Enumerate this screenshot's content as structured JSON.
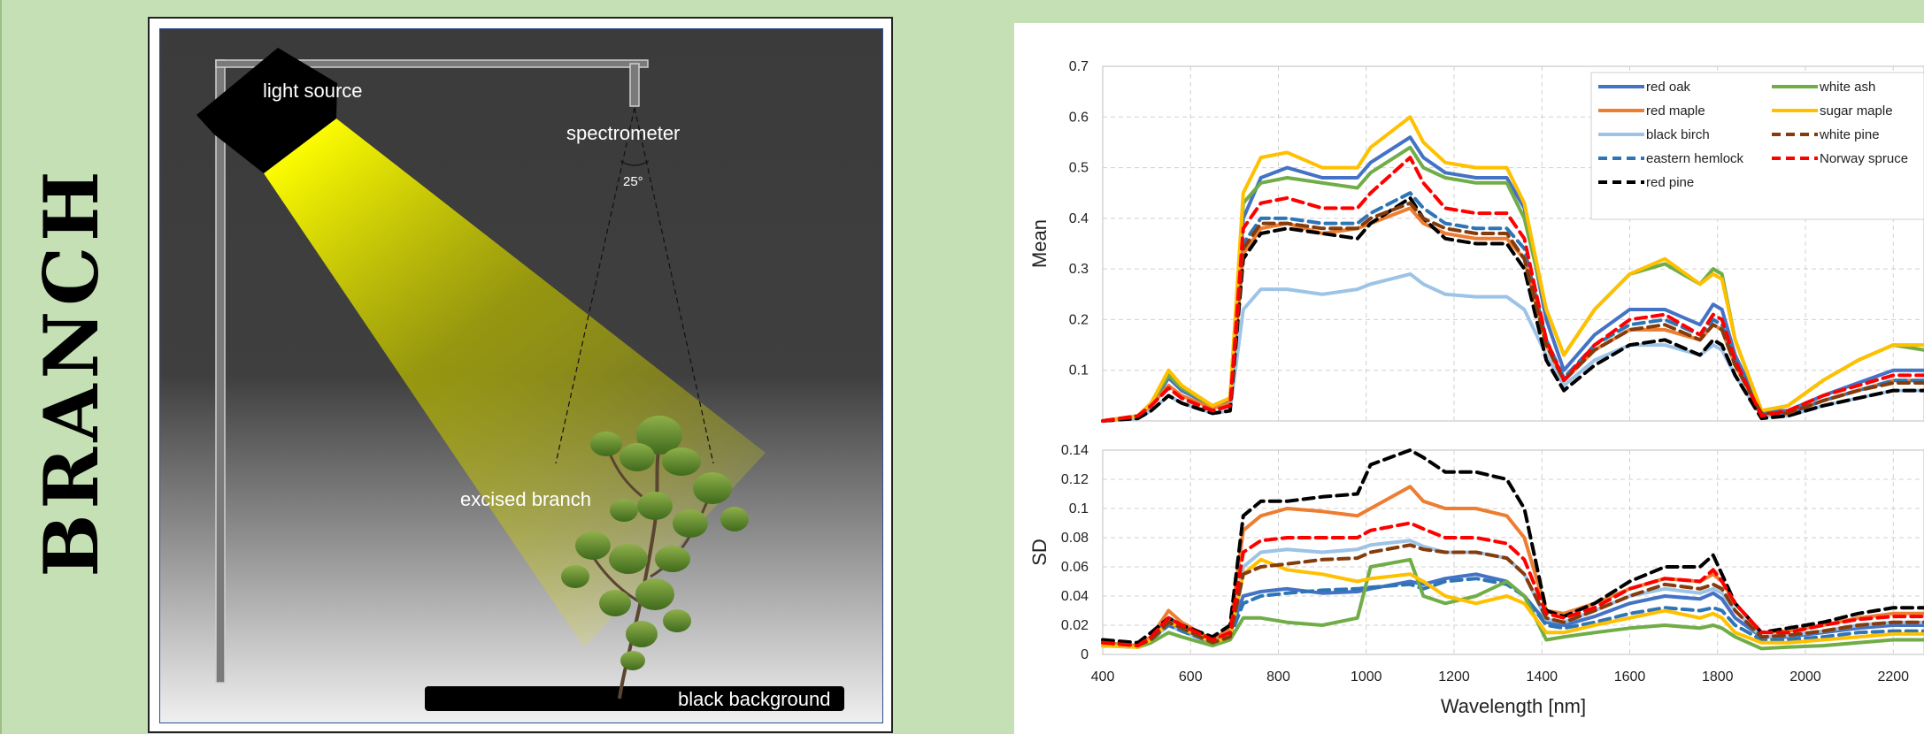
{
  "title": "BRANCH",
  "setup": {
    "light_label": "light source",
    "spectrometer_label": "spectrometer",
    "angle_label": "25°",
    "branch_label": "excised branch",
    "background_label": "black background"
  },
  "chart_data": [
    {
      "type": "line",
      "ylabel": "Mean",
      "xlim": [
        400,
        2270
      ],
      "ylim": [
        0,
        0.7
      ],
      "yticks": [
        "0.1",
        "0.2",
        "0.3",
        "0.4",
        "0.5",
        "0.6",
        "0.7"
      ],
      "grid": true,
      "legend": "top-right",
      "x": [
        400,
        480,
        510,
        550,
        580,
        650,
        690,
        720,
        760,
        820,
        900,
        980,
        1010,
        1100,
        1130,
        1180,
        1250,
        1320,
        1360,
        1410,
        1450,
        1520,
        1600,
        1680,
        1760,
        1790,
        1810,
        1840,
        1900,
        1960,
        2040,
        2120,
        2200,
        2270
      ],
      "series": [
        {
          "name": "red oak",
          "color": "#4472c4",
          "dash": false,
          "values": [
            0.0,
            0.01,
            0.03,
            0.085,
            0.06,
            0.03,
            0.04,
            0.4,
            0.48,
            0.5,
            0.48,
            0.48,
            0.51,
            0.56,
            0.52,
            0.49,
            0.48,
            0.48,
            0.42,
            0.2,
            0.1,
            0.17,
            0.22,
            0.22,
            0.19,
            0.23,
            0.22,
            0.13,
            0.02,
            0.02,
            0.05,
            0.075,
            0.1,
            0.1
          ]
        },
        {
          "name": "red maple",
          "color": "#ed7d31",
          "dash": false,
          "values": [
            0.0,
            0.01,
            0.03,
            0.07,
            0.05,
            0.025,
            0.035,
            0.33,
            0.38,
            0.39,
            0.37,
            0.38,
            0.39,
            0.42,
            0.39,
            0.37,
            0.36,
            0.36,
            0.32,
            0.15,
            0.08,
            0.14,
            0.18,
            0.18,
            0.16,
            0.19,
            0.18,
            0.11,
            0.015,
            0.015,
            0.04,
            0.06,
            0.08,
            0.08
          ]
        },
        {
          "name": "black birch",
          "color": "#9dc3e6",
          "dash": false,
          "values": [
            0.0,
            0.005,
            0.02,
            0.05,
            0.035,
            0.015,
            0.02,
            0.22,
            0.26,
            0.26,
            0.25,
            0.26,
            0.27,
            0.29,
            0.27,
            0.25,
            0.245,
            0.245,
            0.22,
            0.13,
            0.07,
            0.12,
            0.15,
            0.15,
            0.13,
            0.15,
            0.14,
            0.09,
            0.01,
            0.01,
            0.03,
            0.045,
            0.06,
            0.06
          ]
        },
        {
          "name": "eastern hemlock",
          "color": "#2e75b6",
          "dash": true,
          "values": [
            0.0,
            0.01,
            0.03,
            0.065,
            0.045,
            0.02,
            0.03,
            0.35,
            0.4,
            0.4,
            0.39,
            0.39,
            0.41,
            0.45,
            0.42,
            0.39,
            0.38,
            0.38,
            0.34,
            0.16,
            0.085,
            0.15,
            0.19,
            0.2,
            0.17,
            0.2,
            0.19,
            0.12,
            0.015,
            0.015,
            0.04,
            0.06,
            0.08,
            0.08
          ]
        },
        {
          "name": "red pine",
          "color": "#000000",
          "dash": true,
          "values": [
            0.0,
            0.005,
            0.02,
            0.05,
            0.035,
            0.015,
            0.02,
            0.32,
            0.37,
            0.38,
            0.37,
            0.36,
            0.39,
            0.44,
            0.4,
            0.36,
            0.35,
            0.35,
            0.3,
            0.12,
            0.06,
            0.11,
            0.15,
            0.16,
            0.13,
            0.16,
            0.15,
            0.09,
            0.005,
            0.01,
            0.03,
            0.045,
            0.06,
            0.06
          ]
        },
        {
          "name": "white ash",
          "color": "#70ad47",
          "dash": false,
          "values": [
            0.0,
            0.01,
            0.035,
            0.09,
            0.065,
            0.03,
            0.045,
            0.43,
            0.47,
            0.48,
            0.47,
            0.46,
            0.49,
            0.54,
            0.5,
            0.48,
            0.47,
            0.47,
            0.4,
            0.22,
            0.13,
            0.22,
            0.29,
            0.31,
            0.27,
            0.3,
            0.29,
            0.16,
            0.02,
            0.03,
            0.08,
            0.12,
            0.15,
            0.14
          ]
        },
        {
          "name": "sugar maple",
          "color": "#ffc000",
          "dash": false,
          "values": [
            0.0,
            0.01,
            0.035,
            0.1,
            0.07,
            0.03,
            0.045,
            0.45,
            0.52,
            0.53,
            0.5,
            0.5,
            0.54,
            0.6,
            0.55,
            0.51,
            0.5,
            0.5,
            0.43,
            0.22,
            0.13,
            0.22,
            0.29,
            0.32,
            0.27,
            0.29,
            0.28,
            0.16,
            0.02,
            0.03,
            0.08,
            0.12,
            0.15,
            0.15
          ]
        },
        {
          "name": "white pine",
          "color": "#843c0c",
          "dash": true,
          "values": [
            0.0,
            0.01,
            0.03,
            0.065,
            0.045,
            0.02,
            0.03,
            0.34,
            0.39,
            0.39,
            0.38,
            0.38,
            0.4,
            0.43,
            0.4,
            0.38,
            0.37,
            0.37,
            0.32,
            0.15,
            0.08,
            0.14,
            0.18,
            0.19,
            0.16,
            0.19,
            0.18,
            0.11,
            0.015,
            0.015,
            0.04,
            0.06,
            0.075,
            0.075
          ]
        },
        {
          "name": "Norway spruce",
          "color": "#ff0000",
          "dash": true,
          "values": [
            0.0,
            0.01,
            0.03,
            0.065,
            0.045,
            0.02,
            0.03,
            0.38,
            0.43,
            0.44,
            0.42,
            0.42,
            0.45,
            0.52,
            0.47,
            0.42,
            0.41,
            0.41,
            0.36,
            0.16,
            0.08,
            0.15,
            0.2,
            0.21,
            0.17,
            0.21,
            0.2,
            0.12,
            0.01,
            0.02,
            0.05,
            0.07,
            0.09,
            0.09
          ]
        }
      ]
    },
    {
      "type": "line",
      "ylabel": "SD",
      "xlabel": "Wavelength [nm]",
      "xlim": [
        400,
        2270
      ],
      "ylim": [
        0,
        0.14
      ],
      "yticks": [
        "0",
        "0.02",
        "0.04",
        "0.06",
        "0.08",
        "0.1",
        "0.12",
        "0.14"
      ],
      "xticks": [
        "400",
        "600",
        "800",
        "1000",
        "1200",
        "1400",
        "1600",
        "1800",
        "2000",
        "2200"
      ],
      "grid": true,
      "x": [
        400,
        480,
        510,
        550,
        580,
        650,
        690,
        720,
        760,
        820,
        900,
        980,
        1010,
        1100,
        1130,
        1180,
        1250,
        1320,
        1360,
        1410,
        1450,
        1520,
        1600,
        1680,
        1760,
        1790,
        1810,
        1840,
        1900,
        1960,
        2040,
        2120,
        2200,
        2270
      ],
      "series": [
        {
          "name": "red oak",
          "color": "#4472c4",
          "dash": false,
          "values": [
            0.008,
            0.006,
            0.01,
            0.025,
            0.02,
            0.01,
            0.015,
            0.04,
            0.043,
            0.045,
            0.042,
            0.043,
            0.045,
            0.05,
            0.048,
            0.052,
            0.055,
            0.05,
            0.04,
            0.022,
            0.02,
            0.026,
            0.035,
            0.04,
            0.038,
            0.042,
            0.038,
            0.025,
            0.012,
            0.012,
            0.015,
            0.018,
            0.02,
            0.02
          ]
        },
        {
          "name": "red maple",
          "color": "#ed7d31",
          "dash": false,
          "values": [
            0.008,
            0.006,
            0.012,
            0.03,
            0.022,
            0.01,
            0.018,
            0.085,
            0.095,
            0.1,
            0.098,
            0.095,
            0.1,
            0.115,
            0.105,
            0.1,
            0.1,
            0.095,
            0.08,
            0.03,
            0.028,
            0.035,
            0.045,
            0.052,
            0.05,
            0.055,
            0.05,
            0.035,
            0.015,
            0.016,
            0.02,
            0.025,
            0.028,
            0.028
          ]
        },
        {
          "name": "black birch",
          "color": "#9dc3e6",
          "dash": false,
          "values": [
            0.006,
            0.005,
            0.01,
            0.02,
            0.016,
            0.008,
            0.012,
            0.06,
            0.07,
            0.072,
            0.07,
            0.072,
            0.075,
            0.078,
            0.074,
            0.07,
            0.07,
            0.066,
            0.055,
            0.024,
            0.022,
            0.03,
            0.04,
            0.045,
            0.042,
            0.045,
            0.042,
            0.03,
            0.012,
            0.013,
            0.016,
            0.02,
            0.022,
            0.022
          ]
        },
        {
          "name": "eastern hemlock",
          "color": "#2e75b6",
          "dash": true,
          "values": [
            0.006,
            0.005,
            0.01,
            0.02,
            0.016,
            0.008,
            0.012,
            0.035,
            0.04,
            0.042,
            0.044,
            0.045,
            0.046,
            0.048,
            0.045,
            0.05,
            0.052,
            0.048,
            0.04,
            0.02,
            0.018,
            0.022,
            0.028,
            0.032,
            0.03,
            0.032,
            0.03,
            0.02,
            0.01,
            0.01,
            0.012,
            0.015,
            0.016,
            0.016
          ]
        },
        {
          "name": "red pine",
          "color": "#000000",
          "dash": true,
          "values": [
            0.01,
            0.008,
            0.015,
            0.025,
            0.02,
            0.012,
            0.02,
            0.095,
            0.105,
            0.105,
            0.108,
            0.11,
            0.13,
            0.14,
            0.135,
            0.125,
            0.125,
            0.12,
            0.1,
            0.03,
            0.026,
            0.035,
            0.05,
            0.06,
            0.06,
            0.068,
            0.055,
            0.035,
            0.015,
            0.018,
            0.022,
            0.028,
            0.032,
            0.032
          ]
        },
        {
          "name": "white ash",
          "color": "#70ad47",
          "dash": false,
          "values": [
            0.008,
            0.005,
            0.008,
            0.015,
            0.012,
            0.006,
            0.01,
            0.025,
            0.025,
            0.022,
            0.02,
            0.025,
            0.06,
            0.065,
            0.04,
            0.035,
            0.04,
            0.05,
            0.04,
            0.01,
            0.012,
            0.015,
            0.018,
            0.02,
            0.018,
            0.02,
            0.018,
            0.012,
            0.004,
            0.005,
            0.006,
            0.008,
            0.01,
            0.01
          ]
        },
        {
          "name": "sugar maple",
          "color": "#ffc000",
          "dash": false,
          "values": [
            0.006,
            0.005,
            0.01,
            0.022,
            0.018,
            0.008,
            0.012,
            0.055,
            0.065,
            0.058,
            0.055,
            0.05,
            0.052,
            0.055,
            0.05,
            0.04,
            0.035,
            0.04,
            0.035,
            0.015,
            0.015,
            0.02,
            0.025,
            0.03,
            0.025,
            0.028,
            0.025,
            0.015,
            0.008,
            0.008,
            0.01,
            0.012,
            0.014,
            0.014
          ]
        },
        {
          "name": "white pine",
          "color": "#843c0c",
          "dash": true,
          "values": [
            0.008,
            0.006,
            0.01,
            0.022,
            0.018,
            0.008,
            0.012,
            0.055,
            0.06,
            0.062,
            0.065,
            0.066,
            0.07,
            0.075,
            0.072,
            0.07,
            0.07,
            0.066,
            0.055,
            0.025,
            0.022,
            0.03,
            0.04,
            0.048,
            0.045,
            0.048,
            0.045,
            0.03,
            0.012,
            0.013,
            0.016,
            0.02,
            0.022,
            0.022
          ]
        },
        {
          "name": "Norway spruce",
          "color": "#ff0000",
          "dash": true,
          "values": [
            0.008,
            0.006,
            0.012,
            0.025,
            0.02,
            0.01,
            0.015,
            0.07,
            0.078,
            0.08,
            0.08,
            0.08,
            0.085,
            0.09,
            0.086,
            0.08,
            0.08,
            0.076,
            0.065,
            0.028,
            0.025,
            0.032,
            0.045,
            0.052,
            0.05,
            0.058,
            0.05,
            0.035,
            0.015,
            0.015,
            0.02,
            0.024,
            0.026,
            0.026
          ]
        }
      ]
    }
  ]
}
